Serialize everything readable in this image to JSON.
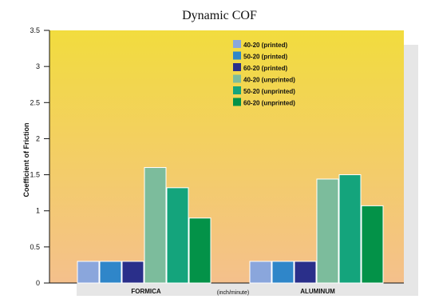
{
  "colors": {
    "bg_top": "#f2dc3e",
    "bg_bottom": "#f4c08c",
    "shadow_panel": "#e6e6e6"
  },
  "chart_data": {
    "type": "bar",
    "title": "Dynamic COF",
    "ylabel": "Coefficient of Friction",
    "xunit_label": "(inch/minute)",
    "categories": [
      "FORMICA",
      "ALUMINUM"
    ],
    "ylim": [
      0,
      3.5
    ],
    "yticks": [
      0,
      0.5,
      1,
      1.5,
      2,
      2.5,
      3,
      3.5
    ],
    "ytick_labels": [
      "0",
      "0.5",
      "1",
      "1.5",
      "2",
      "2.5",
      "3",
      "3.5"
    ],
    "legend_position": "top-center",
    "grid": false,
    "series": [
      {
        "name": "40-20 (printed)",
        "color": "#8aa6dc",
        "values": [
          0.3,
          0.3
        ]
      },
      {
        "name": "50-20 (printed)",
        "color": "#2f86c9",
        "values": [
          0.3,
          0.3
        ]
      },
      {
        "name": "60-20 (printed)",
        "color": "#2a2f8a",
        "values": [
          0.3,
          0.3
        ]
      },
      {
        "name": "40-20 (unprinted)",
        "color": "#7cbc9c",
        "values": [
          1.6,
          1.44
        ]
      },
      {
        "name": "50-20 (unprinted)",
        "color": "#14a47c",
        "values": [
          1.32,
          1.5
        ]
      },
      {
        "name": "60-20 (unprinted)",
        "color": "#039248",
        "values": [
          0.9,
          1.07
        ]
      }
    ]
  }
}
